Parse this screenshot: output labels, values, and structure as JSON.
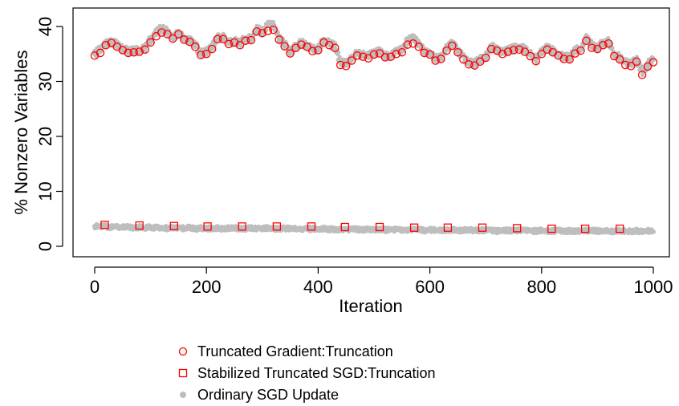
{
  "chart_data": {
    "type": "scatter",
    "title": "",
    "xlabel": "Iteration",
    "ylabel": "% Nonzero Variables",
    "xlim": [
      0,
      1000
    ],
    "ylim": [
      0,
      42
    ],
    "x_ticks": [
      0,
      200,
      400,
      600,
      800,
      1000
    ],
    "y_ticks": [
      0,
      10,
      20,
      30,
      40
    ],
    "grid": false,
    "legend_position": "bottom-center",
    "series": [
      {
        "name": "Truncated Gradient:Truncation",
        "marker": "open-circle",
        "color": "#ff0000",
        "x": [
          0,
          10,
          20,
          30,
          40,
          50,
          60,
          70,
          80,
          90,
          100,
          110,
          120,
          130,
          140,
          150,
          160,
          170,
          180,
          190,
          200,
          210,
          220,
          230,
          240,
          250,
          260,
          270,
          280,
          290,
          300,
          310,
          320,
          330,
          340,
          350,
          360,
          370,
          380,
          390,
          400,
          410,
          420,
          430,
          440,
          450,
          460,
          470,
          480,
          490,
          500,
          510,
          520,
          530,
          540,
          550,
          560,
          570,
          580,
          590,
          600,
          610,
          620,
          630,
          640,
          650,
          660,
          670,
          680,
          690,
          700,
          710,
          720,
          730,
          740,
          750,
          760,
          770,
          780,
          790,
          800,
          810,
          820,
          830,
          840,
          850,
          860,
          870,
          880,
          890,
          900,
          910,
          920,
          930,
          940,
          950,
          960,
          970,
          980,
          990,
          1000
        ],
        "values": [
          34.7,
          35.2,
          36.6,
          37.0,
          36.3,
          35.7,
          35.2,
          35.3,
          35.4,
          35.8,
          37.1,
          38.2,
          38.9,
          38.6,
          37.8,
          38.6,
          37.6,
          37.2,
          36.3,
          34.8,
          35.0,
          35.9,
          37.7,
          37.7,
          36.8,
          37.1,
          36.6,
          37.4,
          37.5,
          39.1,
          38.8,
          39.2,
          39.4,
          37.6,
          36.4,
          35.1,
          36.1,
          36.7,
          36.3,
          35.5,
          35.7,
          37.1,
          36.6,
          36.1,
          33.0,
          32.8,
          33.8,
          34.7,
          34.5,
          34.2,
          34.9,
          35.1,
          34.4,
          34.5,
          35.0,
          35.3,
          36.7,
          36.9,
          36.3,
          35.2,
          34.9,
          33.8,
          34.1,
          35.6,
          36.5,
          35.3,
          34.0,
          33.1,
          32.9,
          33.6,
          34.3,
          35.9,
          35.6,
          35.0,
          35.4,
          35.7,
          35.8,
          35.4,
          34.6,
          33.7,
          35.0,
          35.8,
          35.3,
          34.7,
          34.1,
          34.0,
          35.1,
          35.6,
          37.4,
          36.1,
          35.9,
          36.6,
          36.9,
          34.6,
          34.0,
          33.0,
          32.8,
          33.6,
          31.2,
          32.7,
          33.5
        ]
      },
      {
        "name": "Stabilized Truncated SGD:Truncation",
        "marker": "open-square",
        "color": "#ff0000",
        "x": [
          18,
          80,
          142,
          202,
          264,
          326,
          388,
          448,
          510,
          572,
          632,
          694,
          756,
          818,
          878,
          940
        ],
        "values": [
          3.9,
          3.8,
          3.7,
          3.6,
          3.6,
          3.6,
          3.6,
          3.5,
          3.5,
          3.4,
          3.4,
          3.4,
          3.3,
          3.2,
          3.2,
          3.2
        ]
      },
      {
        "name": "Ordinary SGD Update",
        "marker": "filled-dot",
        "color": "#bebebe",
        "x": [
          0,
          10,
          20,
          30,
          40,
          50,
          60,
          70,
          80,
          90,
          100,
          110,
          120,
          130,
          140,
          150,
          160,
          170,
          180,
          190,
          200,
          210,
          220,
          230,
          240,
          250,
          260,
          270,
          280,
          290,
          300,
          310,
          320,
          330,
          340,
          350,
          360,
          370,
          380,
          390,
          400,
          410,
          420,
          430,
          440,
          450,
          460,
          470,
          480,
          490,
          500,
          510,
          520,
          530,
          540,
          550,
          560,
          570,
          580,
          590,
          600,
          610,
          620,
          630,
          640,
          650,
          660,
          670,
          680,
          690,
          700,
          710,
          720,
          730,
          740,
          750,
          760,
          770,
          780,
          790,
          800,
          810,
          820,
          830,
          840,
          850,
          860,
          870,
          880,
          890,
          900,
          910,
          920,
          930,
          940,
          950,
          960,
          970,
          980,
          990,
          1000
        ],
        "upper_values": [
          35.6,
          36.5,
          37.5,
          37.9,
          37.3,
          36.6,
          36.1,
          36.2,
          36.3,
          36.8,
          38.2,
          39.7,
          40.2,
          39.6,
          38.8,
          39.4,
          38.5,
          38.1,
          37.2,
          35.8,
          35.9,
          36.9,
          38.5,
          38.6,
          37.7,
          38.0,
          37.6,
          38.3,
          38.4,
          40.0,
          39.8,
          40.8,
          41.0,
          38.6,
          37.4,
          36.1,
          37.0,
          37.6,
          37.3,
          36.4,
          36.7,
          38.0,
          37.5,
          37.0,
          34.0,
          33.8,
          34.8,
          35.7,
          35.4,
          35.2,
          35.8,
          36.1,
          35.3,
          35.4,
          36.0,
          36.3,
          38.1,
          38.5,
          37.4,
          36.1,
          35.9,
          34.8,
          35.0,
          36.6,
          37.5,
          36.3,
          35.0,
          34.1,
          33.9,
          34.6,
          35.3,
          36.9,
          36.5,
          36.0,
          36.3,
          36.7,
          37.0,
          36.4,
          35.5,
          34.8,
          36.0,
          36.8,
          36.2,
          35.7,
          35.1,
          35.0,
          36.1,
          36.6,
          38.5,
          37.1,
          36.9,
          37.5,
          37.9,
          35.6,
          35.0,
          34.0,
          33.8,
          34.6,
          32.3,
          33.7,
          34.6
        ],
        "lower_values": [
          3.6,
          3.7,
          3.6,
          3.5,
          3.5,
          3.6,
          3.5,
          3.4,
          3.5,
          3.4,
          3.5,
          3.4,
          3.4,
          3.3,
          3.4,
          3.3,
          3.3,
          3.4,
          3.2,
          3.3,
          3.3,
          3.2,
          3.3,
          3.2,
          3.3,
          3.3,
          3.3,
          3.2,
          3.3,
          3.2,
          3.3,
          3.3,
          3.2,
          3.2,
          3.3,
          3.2,
          3.2,
          3.1,
          3.2,
          3.2,
          3.1,
          3.2,
          3.1,
          3.1,
          3.1,
          3.0,
          3.1,
          3.1,
          3.0,
          3.1,
          3.0,
          3.1,
          3.0,
          3.0,
          3.1,
          3.0,
          3.0,
          3.1,
          3.0,
          2.9,
          3.0,
          3.0,
          2.9,
          3.0,
          3.0,
          2.9,
          2.9,
          3.0,
          2.9,
          2.9,
          2.9,
          2.9,
          2.8,
          2.9,
          2.9,
          2.8,
          2.9,
          2.9,
          2.8,
          2.8,
          2.9,
          2.8,
          2.8,
          2.9,
          2.8,
          2.8,
          2.8,
          2.8,
          2.8,
          2.9,
          2.8,
          2.8,
          2.8,
          2.7,
          2.8,
          2.8,
          2.7,
          2.8,
          2.7,
          2.8,
          2.7
        ]
      }
    ]
  }
}
